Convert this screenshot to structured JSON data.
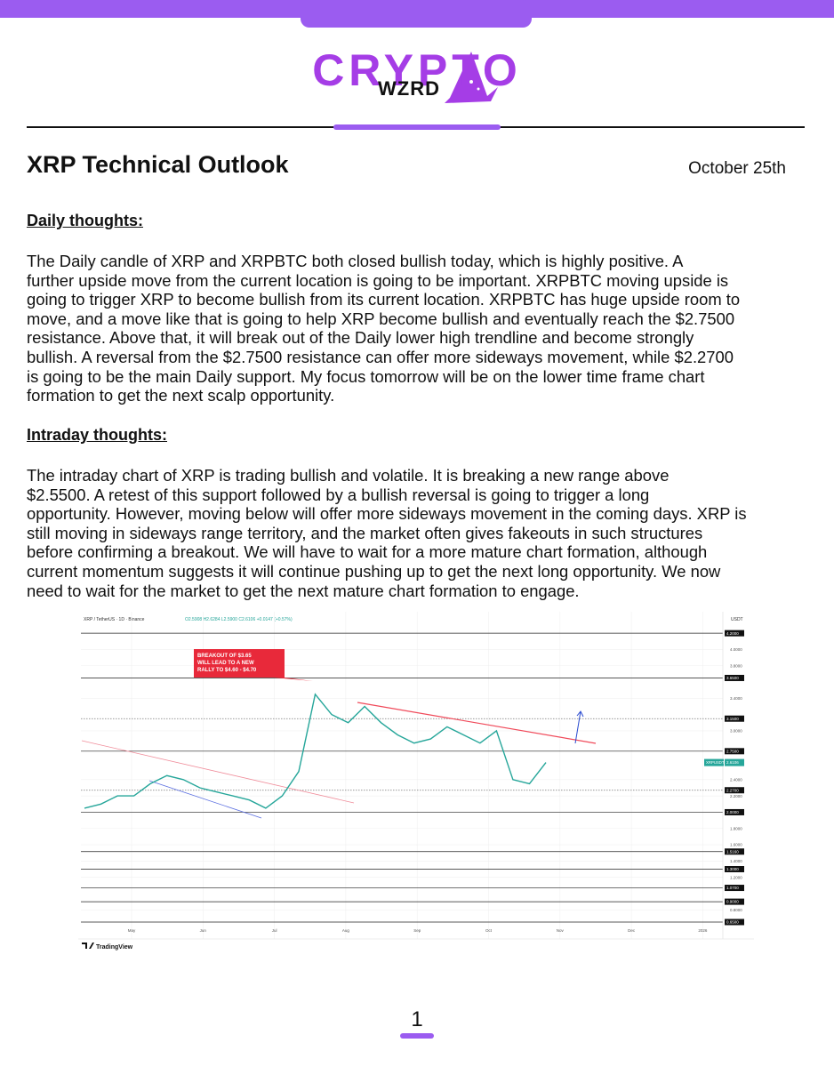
{
  "header": {
    "brand_top": "CRYPTO",
    "brand_bottom": "WZRD"
  },
  "title": "XRP Technical Outlook",
  "date": "October 25th",
  "sections": [
    {
      "heading": "Daily thoughts:",
      "lines": [
        "The Daily candle of XRP and XRPBTC both closed bullish today, which is highly positive. A",
        "further upside move from the current location is going to be important. XRPBTC moving upside is",
        "going to trigger XRP to become bullish from its current location. XRPBTC has huge upside room to",
        "move, and a move like that is going to help XRP become bullish and eventually reach the $2.7500",
        "resistance. Above that, it will break out of the Daily lower high trendline and become strongly",
        "bullish. A reversal from the $2.7500 resistance can offer more sideways movement, while $2.2700",
        "is going to be the main Daily support. My focus tomorrow will be on the lower time frame chart",
        "formation to get the next scalp opportunity."
      ]
    },
    {
      "heading": "Intraday thoughts:",
      "lines": [
        "The intraday chart of XRP is trading bullish and volatile. It is breaking a new range above",
        "$2.5500. A retest of this support followed by a bullish reversal is going to trigger a long",
        "opportunity. However, moving below will offer more sideways movement in the coming days. XRP is",
        "still moving in sideways range territory, and the market often gives fakeouts in such structures",
        "before confirming a breakout. We will have to wait for a more mature chart formation, although",
        "current momentum suggests it will continue pushing up to get the next long opportunity. We now",
        "need to wait for the market to get the next mature chart formation to engage."
      ]
    }
  ],
  "chart_data": {
    "type": "line",
    "title": "XRP / TetherUS · 1D · Binance",
    "ohlc_text": "O2.5908 H2.6284 L2.5900 C2.6106 +0.0147 (+0.57%)",
    "currency": "USDT",
    "symbol": "XRPUSDT",
    "last_price": 2.6106,
    "annotation": [
      "BREAKOUT OF $3.65",
      "WILL LEAD TO A NEW",
      "RALLY TO $4.60 - $4.70"
    ],
    "x_labels": [
      "May",
      "Jun",
      "Jul",
      "Aug",
      "Sep",
      "Oct",
      "Nov",
      "Dec",
      "2026"
    ],
    "values": [
      2.05,
      2.1,
      2.2,
      2.2,
      2.35,
      2.45,
      2.4,
      2.3,
      2.25,
      2.2,
      2.15,
      2.05,
      2.2,
      2.5,
      3.45,
      3.2,
      3.1,
      3.3,
      3.1,
      2.95,
      2.85,
      2.9,
      3.05,
      2.95,
      2.85,
      3.0,
      2.4,
      2.35,
      2.61
    ],
    "color": "#26a69a",
    "ylim": [
      0.5,
      4.3
    ],
    "yticks": [
      {
        "value": 4.0,
        "label": "4.0000"
      },
      {
        "value": 3.8,
        "label": "3.8000"
      },
      {
        "value": 3.4,
        "label": "3.4000"
      },
      {
        "value": 3.0,
        "label": "3.0000"
      },
      {
        "value": 2.4,
        "label": "2.4000"
      },
      {
        "value": 2.2,
        "label": "2.2000"
      },
      {
        "value": 1.8,
        "label": "1.8000"
      },
      {
        "value": 1.6,
        "label": "1.6000"
      },
      {
        "value": 1.4,
        "label": "1.4000"
      },
      {
        "value": 1.2,
        "label": "1.2000"
      },
      {
        "value": 0.8,
        "label": "0.8000"
      }
    ],
    "levels": [
      {
        "value": 4.2,
        "label": "4.2000",
        "style": "solid"
      },
      {
        "value": 3.65,
        "label": "3.6500",
        "style": "solid"
      },
      {
        "value": 3.15,
        "label": "3.1500",
        "style": "dotted"
      },
      {
        "value": 2.75,
        "label": "2.7500",
        "style": "solid"
      },
      {
        "value": 2.27,
        "label": "2.2700",
        "style": "dotted"
      },
      {
        "value": 2.0,
        "label": "2.0000",
        "style": "solid"
      },
      {
        "value": 1.516,
        "label": "1.5160",
        "style": "solid"
      },
      {
        "value": 1.3,
        "label": "1.3000",
        "style": "solid"
      },
      {
        "value": 1.07,
        "label": "1.0700",
        "style": "solid"
      },
      {
        "value": 0.9,
        "label": "0.9000",
        "style": "solid"
      },
      {
        "value": 0.65,
        "label": "0.6500",
        "style": "solid"
      }
    ],
    "watermark": "TradingView"
  },
  "page_number": "1"
}
